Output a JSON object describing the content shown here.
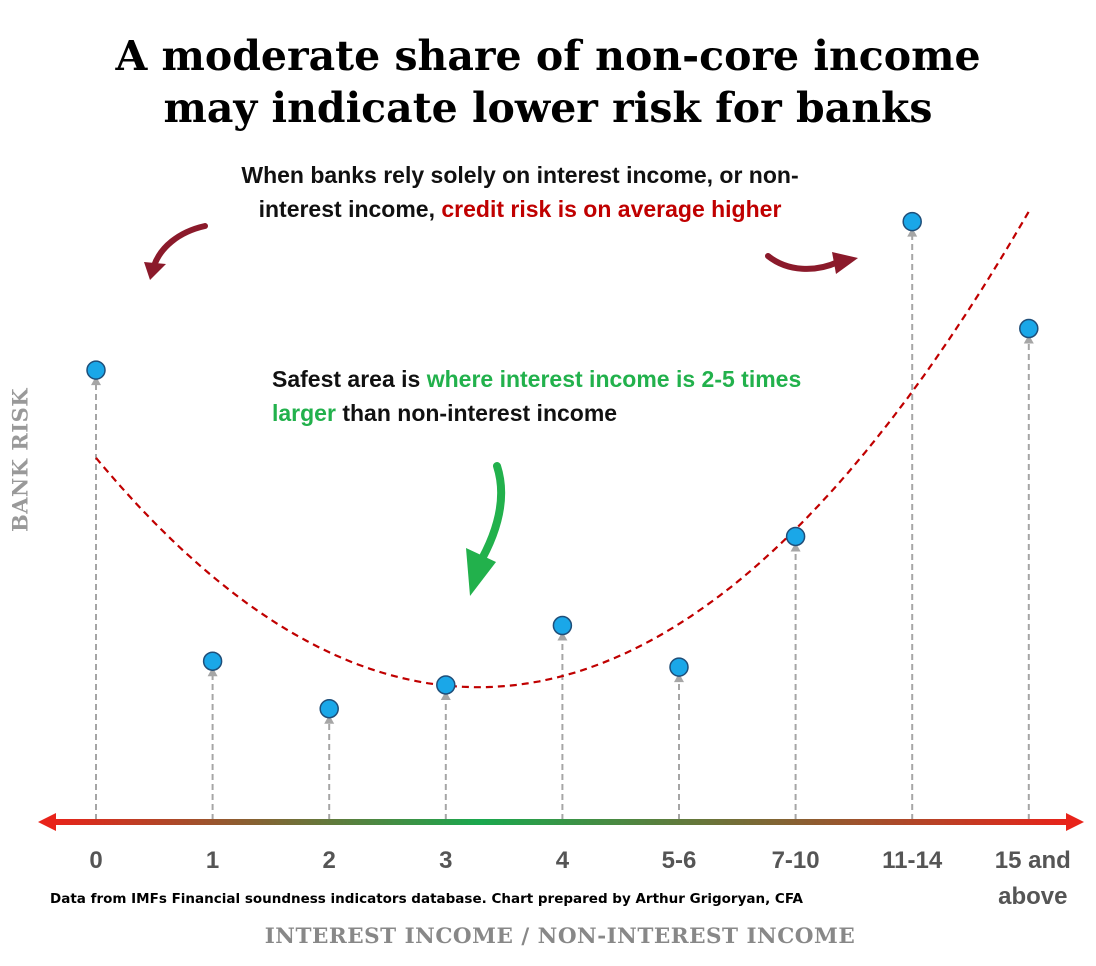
{
  "title": {
    "line1": "A moderate share of non-core income",
    "line2": "may indicate lower risk for banks"
  },
  "annotations": {
    "top": {
      "part1": "When banks rely solely on interest income, or non-interest income, ",
      "part2_red": "credit risk is on average higher"
    },
    "middle": {
      "part1": "Safest area is ",
      "part2_green": "where interest income is 2-5 times larger",
      "part3": " than non-interest income"
    }
  },
  "source": "Data from IMFs Financial soundness indicators database. Chart prepared by Arthur Grigoryan, CFA",
  "colors": {
    "marker": "#1aa7e8",
    "trendline": "#c00000",
    "highlight_red": "#c00000",
    "highlight_green": "#22b14c",
    "axis_gradient": [
      "#e8231a",
      "#1aa84e",
      "#e8231a"
    ]
  },
  "chart_data": {
    "type": "scatter",
    "title": "A moderate share of non-core income may indicate lower risk for banks",
    "xlabel": "INTEREST INCOME / NON-INTEREST INCOME",
    "ylabel": "BANK RISK",
    "categories": [
      "0",
      "1",
      "2",
      "3",
      "4",
      "5-6",
      "7-10",
      "11-14",
      "15 and above"
    ],
    "values": [
      0.69,
      0.2,
      0.12,
      0.16,
      0.26,
      0.19,
      0.41,
      0.94,
      0.76
    ],
    "y_axis_ticks": "none",
    "trendline": "quadratic (dashed)",
    "grid": false,
    "legend": "none"
  }
}
